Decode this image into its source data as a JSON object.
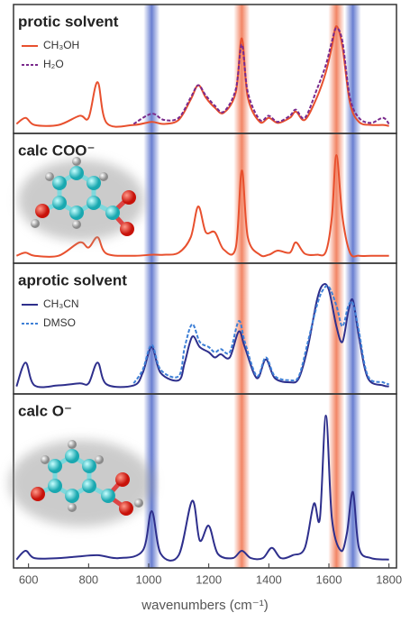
{
  "bands": [
    {
      "x": 1010,
      "color": "#4f68c9"
    },
    {
      "x": 1310,
      "color": "#f0704a"
    },
    {
      "x": 1625,
      "color": "#f0704a"
    },
    {
      "x": 1680,
      "color": "#4f68c9"
    }
  ],
  "chart_data": [
    {
      "type": "line",
      "title": "protic solvent",
      "legend": true,
      "xlim": [
        550,
        1825
      ],
      "ylim": [
        0,
        100
      ],
      "x": [
        560,
        590,
        620,
        700,
        770,
        800,
        830,
        860,
        950,
        1010,
        1050,
        1100,
        1140,
        1165,
        1190,
        1220,
        1250,
        1290,
        1310,
        1330,
        1370,
        1400,
        1430,
        1470,
        1490,
        1520,
        1560,
        1590,
        1610,
        1625,
        1645,
        1670,
        1700,
        1740,
        1780,
        1800
      ],
      "series": [
        {
          "name": "CH₃OH",
          "color": "#e8502e",
          "dash": false,
          "values": [
            4,
            10,
            3,
            3,
            12,
            10,
            45,
            5,
            3,
            6,
            4,
            8,
            28,
            42,
            30,
            20,
            15,
            35,
            88,
            30,
            6,
            10,
            5,
            10,
            16,
            8,
            30,
            55,
            80,
            100,
            80,
            25,
            6,
            3,
            3,
            2
          ]
        },
        {
          "name": "H₂O",
          "color": "#7a2a8c",
          "dash": true,
          "values": [
            null,
            null,
            null,
            null,
            null,
            null,
            null,
            null,
            4,
            14,
            8,
            10,
            30,
            42,
            32,
            22,
            16,
            38,
            82,
            35,
            8,
            12,
            6,
            12,
            18,
            10,
            38,
            62,
            85,
            98,
            85,
            30,
            10,
            5,
            10,
            4
          ]
        }
      ]
    },
    {
      "type": "line",
      "title": "calc COO⁻",
      "legend": false,
      "xlim": [
        550,
        1825
      ],
      "ylim": [
        0,
        100
      ],
      "x": [
        560,
        590,
        620,
        700,
        770,
        800,
        830,
        860,
        950,
        1010,
        1050,
        1100,
        1140,
        1165,
        1190,
        1220,
        1250,
        1290,
        1310,
        1330,
        1370,
        1400,
        1430,
        1470,
        1490,
        1520,
        1560,
        1590,
        1610,
        1625,
        1645,
        1670,
        1700,
        1740,
        1780,
        1800
      ],
      "series": [
        {
          "name": "calc COO⁻",
          "color": "#e8502e",
          "dash": false,
          "values": [
            2,
            5,
            2,
            2,
            15,
            10,
            20,
            4,
            2,
            3,
            3,
            5,
            20,
            50,
            25,
            25,
            8,
            10,
            85,
            20,
            3,
            3,
            7,
            5,
            15,
            4,
            3,
            6,
            40,
            100,
            40,
            5,
            2,
            2,
            2,
            2
          ]
        }
      ]
    },
    {
      "type": "line",
      "title": "aprotic solvent",
      "legend": true,
      "xlim": [
        550,
        1825
      ],
      "ylim": [
        0,
        100
      ],
      "x": [
        560,
        590,
        620,
        700,
        770,
        800,
        830,
        860,
        950,
        980,
        1010,
        1040,
        1100,
        1120,
        1145,
        1170,
        1200,
        1220,
        1240,
        1270,
        1300,
        1320,
        1360,
        1390,
        1420,
        1470,
        1500,
        1530,
        1560,
        1580,
        1600,
        1625,
        1645,
        1665,
        1680,
        1700,
        1730,
        1780,
        1800
      ],
      "series": [
        {
          "name": "CH₃CN",
          "color": "#2e2f8c",
          "dash": false,
          "values": [
            2,
            25,
            3,
            3,
            5,
            5,
            25,
            4,
            3,
            15,
            40,
            15,
            8,
            25,
            50,
            40,
            35,
            30,
            33,
            30,
            55,
            40,
            10,
            28,
            10,
            6,
            10,
            40,
            85,
            100,
            95,
            60,
            45,
            75,
            85,
            50,
            10,
            3,
            2
          ]
        },
        {
          "name": "DMSO",
          "color": "#3d7fd6",
          "dash": true,
          "values": [
            null,
            null,
            null,
            null,
            null,
            null,
            null,
            null,
            5,
            18,
            42,
            18,
            12,
            40,
            62,
            45,
            40,
            35,
            38,
            35,
            65,
            45,
            12,
            30,
            12,
            8,
            12,
            45,
            80,
            95,
            98,
            80,
            60,
            80,
            82,
            55,
            12,
            6,
            4
          ]
        }
      ]
    },
    {
      "type": "line",
      "title": "calc O⁻",
      "legend": false,
      "xlim": [
        550,
        1825
      ],
      "ylim": [
        0,
        100
      ],
      "x": [
        560,
        590,
        620,
        700,
        760,
        830,
        900,
        980,
        1010,
        1040,
        1100,
        1145,
        1170,
        1200,
        1230,
        1280,
        1310,
        1340,
        1380,
        1410,
        1440,
        1480,
        1520,
        1550,
        1570,
        1590,
        1610,
        1640,
        1660,
        1680,
        1700,
        1740,
        1800
      ],
      "series": [
        {
          "name": "calc O⁻",
          "color": "#2e2f8c",
          "dash": false,
          "values": [
            2,
            8,
            3,
            3,
            4,
            5,
            3,
            8,
            35,
            6,
            5,
            42,
            15,
            25,
            6,
            3,
            8,
            3,
            3,
            10,
            3,
            5,
            10,
            40,
            30,
            100,
            30,
            8,
            20,
            48,
            10,
            3,
            2
          ]
        }
      ],
      "xticks": [
        600,
        800,
        1000,
        1200,
        1400,
        1600,
        1800
      ],
      "x_label": "wavenumbers (cm⁻¹)"
    }
  ]
}
